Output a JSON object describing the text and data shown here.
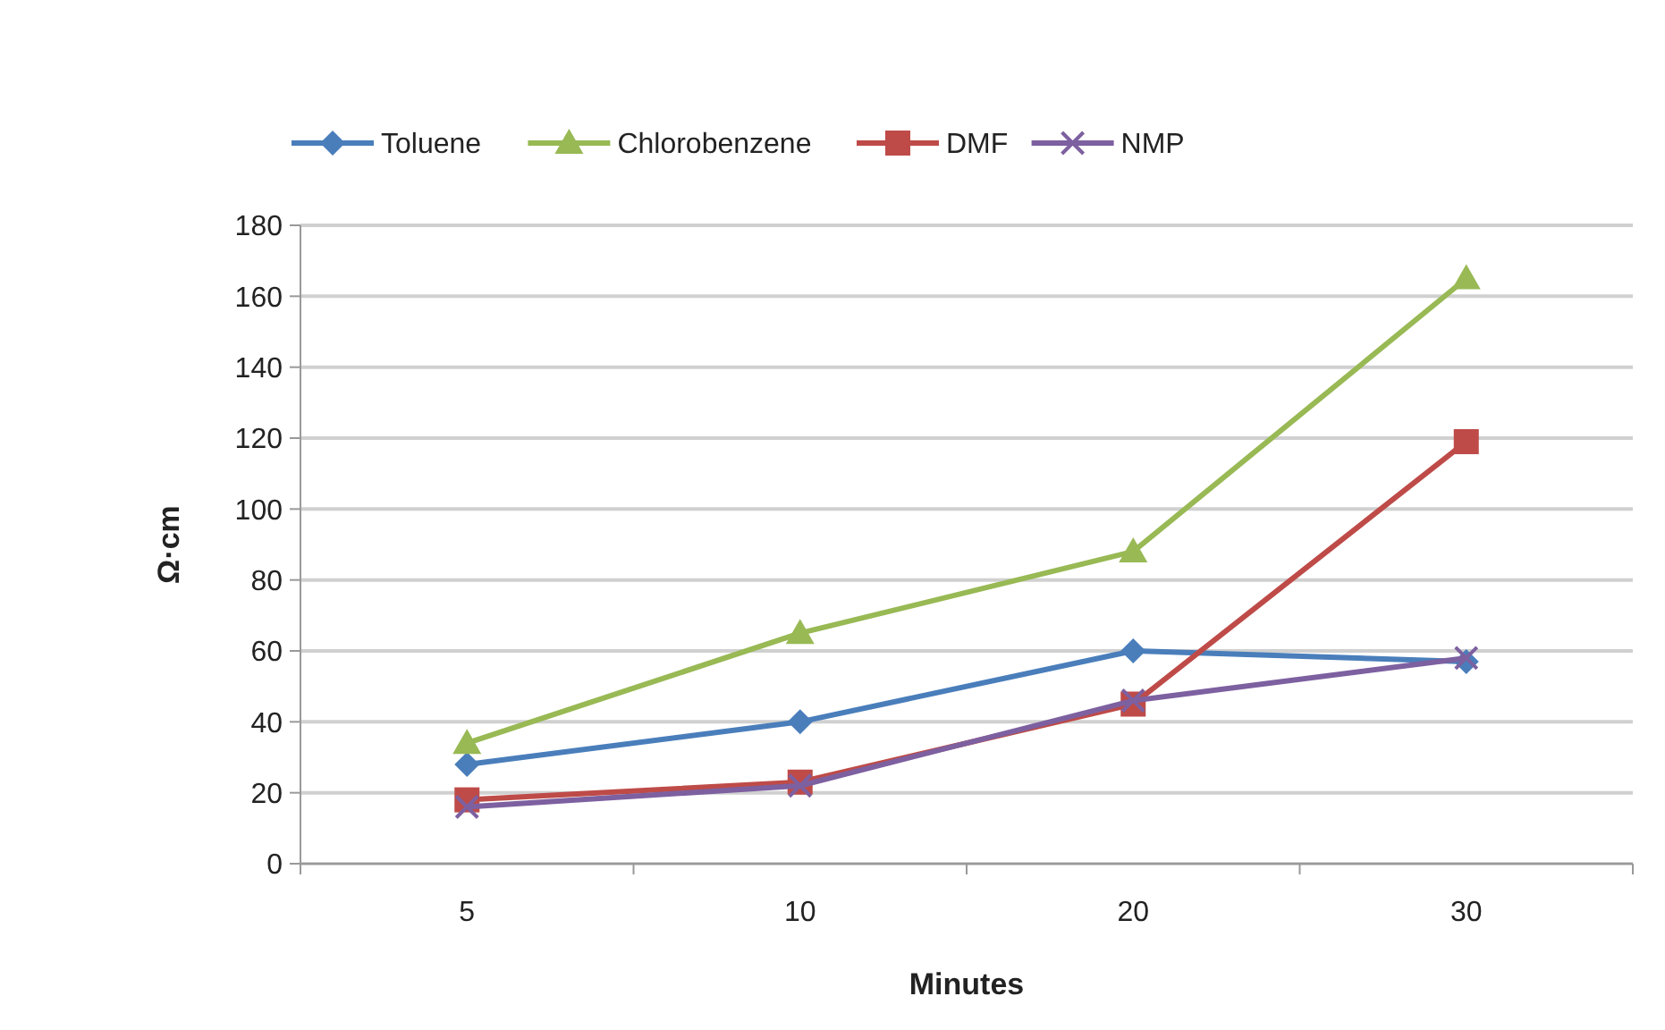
{
  "chart_data": {
    "type": "line",
    "xlabel": "Minutes",
    "ylabel": "Ω·cm",
    "categories": [
      "5",
      "10",
      "20",
      "30"
    ],
    "ylim": [
      0,
      180
    ],
    "yticks": [
      0,
      20,
      40,
      60,
      80,
      100,
      120,
      140,
      160,
      180
    ],
    "grid": "y",
    "legend": "top",
    "series": [
      {
        "name": "Toluene",
        "color": "#4a7ebb",
        "marker": "diamond",
        "values": [
          28,
          40,
          60,
          57
        ]
      },
      {
        "name": "Chlorobenzene",
        "color": "#98b954",
        "marker": "triangle",
        "values": [
          34,
          65,
          88,
          165
        ]
      },
      {
        "name": "DMF",
        "color": "#be4b48",
        "marker": "square",
        "values": [
          18,
          23,
          45,
          119
        ]
      },
      {
        "name": "NMP",
        "color": "#7d60a0",
        "marker": "cross",
        "values": [
          16,
          22,
          46,
          58
        ]
      }
    ]
  }
}
